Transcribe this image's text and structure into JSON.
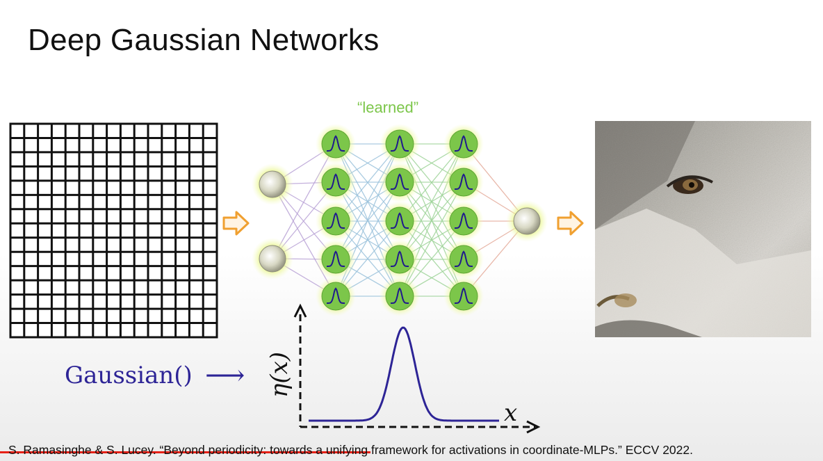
{
  "slide": {
    "title": "Deep Gaussian Networks",
    "learned_label": "“learned”",
    "gaussian_label": "Gaussian()",
    "gaussian_arrow": "⟶",
    "y_axis_label": "η(x)",
    "x_axis_label": "x",
    "citation": "S. Ramasinghe & S. Lucey. “Beyond periodicity: towards a unifying framework for activations in coordinate-MLPs.” ECCV 2022."
  },
  "video": {
    "progress": 0.45
  },
  "icons": {
    "input": "grid-icon",
    "flow": "arrow-right-icon",
    "output": "wolf-image",
    "activation": "gaussian-curve-icon"
  },
  "colors": {
    "title": "#111111",
    "learned": "#7cc64a",
    "gaussian": "#2d2496",
    "node_green": "#7cc64a",
    "arrow_orange": "#f0a030",
    "progress": "#e62117"
  }
}
